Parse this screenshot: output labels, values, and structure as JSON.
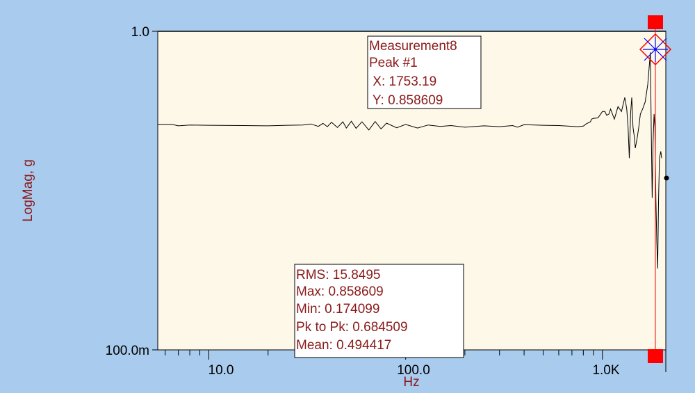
{
  "colors": {
    "background": "#a9cbee",
    "plot_bg": "#fdf8e8",
    "trace": "#000000",
    "label": "#8b1a1a",
    "cursor": "#ff0000",
    "cursor_marker": "#0000ff"
  },
  "chart_data": {
    "type": "line",
    "xscale": "log",
    "yscale": "log",
    "xlabel": "Hz",
    "ylabel": "LogMag, g",
    "xlim": [
      5.5,
      2100
    ],
    "ylim": [
      0.1,
      1.0
    ],
    "x_ticks": [
      {
        "value": 10,
        "label": "10.0"
      },
      {
        "value": 100,
        "label": "100.0"
      },
      {
        "value": 1000,
        "label": "1.0K"
      }
    ],
    "y_ticks": [
      {
        "value": 1.0,
        "label": "1.0"
      },
      {
        "value": 0.1,
        "label": "100.0m"
      }
    ],
    "series": [
      {
        "name": "Measurement8",
        "x": [
          5.5,
          6.5,
          7.0,
          8.0,
          10,
          15,
          20,
          25,
          30,
          33,
          36,
          38,
          40,
          42,
          45,
          48,
          50,
          53,
          56,
          60,
          65,
          70,
          75,
          80,
          90,
          100,
          115,
          130,
          150,
          170,
          200,
          250,
          300,
          350,
          370,
          400,
          500,
          600,
          750,
          800,
          830,
          870,
          880,
          900,
          950,
          1000,
          1030,
          1050,
          1080,
          1100,
          1150,
          1200,
          1250,
          1300,
          1330,
          1350,
          1370,
          1390,
          1410,
          1430,
          1450,
          1470,
          1500,
          1530,
          1560,
          1600,
          1650,
          1700,
          1753.19,
          1770,
          1790,
          1810,
          1830,
          1850,
          1870,
          1890,
          1910,
          1930,
          1950,
          1980,
          2000
        ],
        "y": [
          0.51,
          0.51,
          0.505,
          0.508,
          0.507,
          0.506,
          0.505,
          0.507,
          0.508,
          0.512,
          0.503,
          0.514,
          0.502,
          0.518,
          0.499,
          0.52,
          0.497,
          0.522,
          0.496,
          0.52,
          0.49,
          0.521,
          0.494,
          0.515,
          0.498,
          0.51,
          0.497,
          0.508,
          0.503,
          0.506,
          0.5,
          0.505,
          0.502,
          0.506,
          0.5,
          0.509,
          0.507,
          0.506,
          0.502,
          0.504,
          0.513,
          0.52,
          0.53,
          0.533,
          0.535,
          0.56,
          0.56,
          0.545,
          0.55,
          0.57,
          0.53,
          0.58,
          0.56,
          0.62,
          0.57,
          0.5,
          0.4,
          0.55,
          0.62,
          0.5,
          0.47,
          0.43,
          0.46,
          0.5,
          0.55,
          0.57,
          0.6,
          0.68,
          0.858609,
          0.5,
          0.3,
          0.45,
          0.55,
          0.5,
          0.3,
          0.22,
          0.18,
          0.3,
          0.4,
          0.42,
          0.4
        ]
      }
    ],
    "peak_label": {
      "title": "Measurement8",
      "subtitle": "Peak #1",
      "x_text": " X: 1753.19",
      "y_text": " Y: 0.858609",
      "x": 1753.19,
      "y": 0.858609
    },
    "stats": [
      "RMS: 15.8495",
      "Max: 0.858609",
      "Min: 0.174099",
      "Pk to Pk: 0.684509",
      "Mean: 0.494417"
    ],
    "end_marker": {
      "x": 2050,
      "y": 0.4
    }
  }
}
